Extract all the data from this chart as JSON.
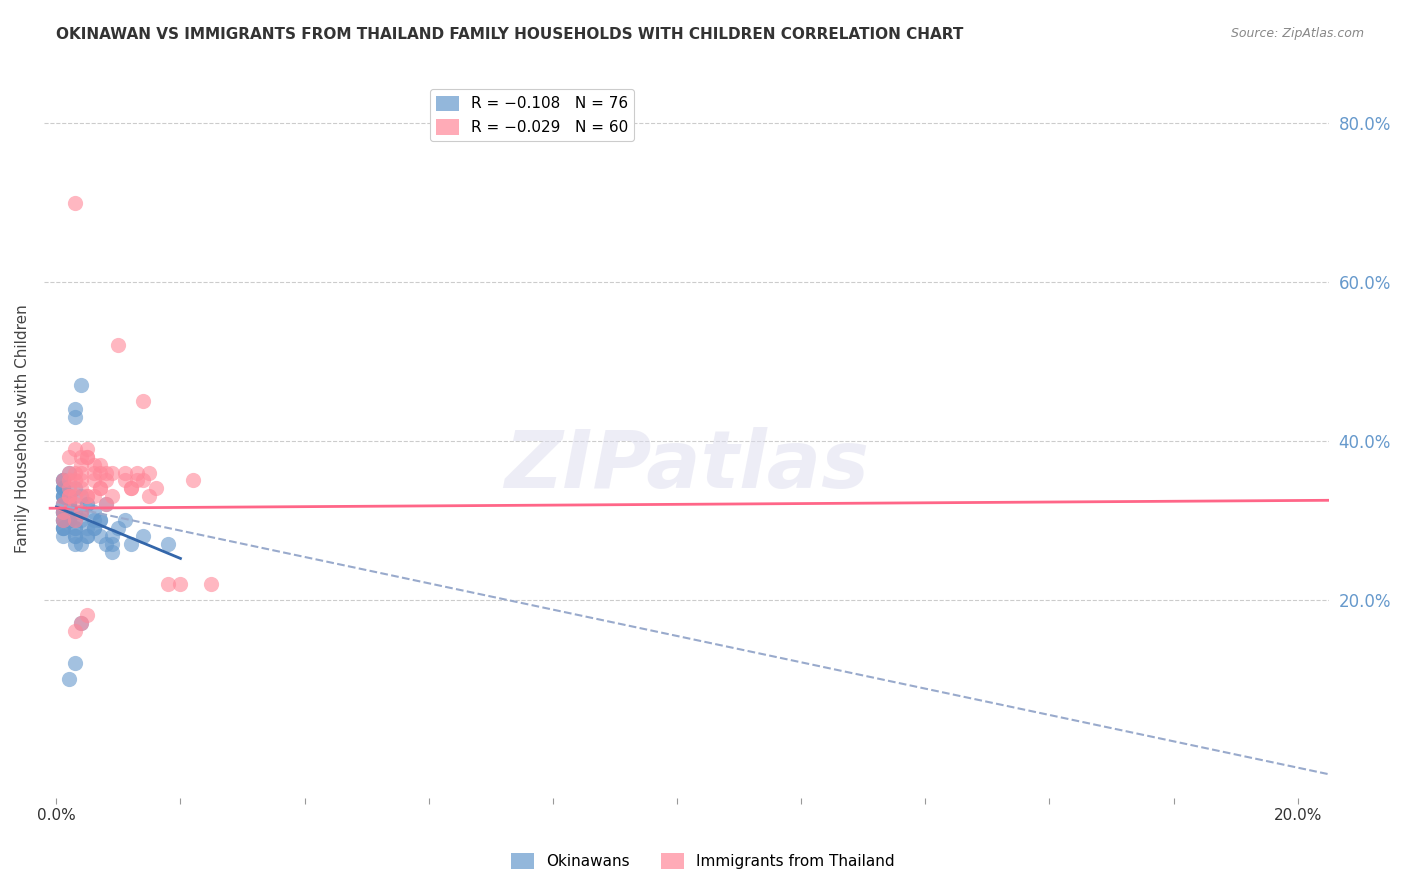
{
  "title": "OKINAWAN VS IMMIGRANTS FROM THAILAND FAMILY HOUSEHOLDS WITH CHILDREN CORRELATION CHART",
  "source": "Source: ZipAtlas.com",
  "ylabel": "Family Households with Children",
  "xlabel_bottom": "",
  "right_ytick_labels": [
    "80.0%",
    "60.0%",
    "40.0%",
    "20.0%"
  ],
  "right_ytick_values": [
    0.8,
    0.6,
    0.4,
    0.2
  ],
  "xlim": [
    -0.002,
    0.205
  ],
  "ylim": [
    -0.05,
    0.88
  ],
  "xtick_labels": [
    "0.0%",
    "",
    "",
    "",
    "",
    "",
    "",
    "",
    "",
    "",
    "20.0%"
  ],
  "okinawan_color": "#6699CC",
  "thailand_color": "#FF8899",
  "trend_okinawan_color": "#3366AA",
  "trend_thailand_solid_color": "#FF6688",
  "trend_dashed_color": "#99AACC",
  "legend_R_okinawan": "R = −0.108",
  "legend_N_okinawan": "N = 76",
  "legend_R_thailand": "R = −0.029",
  "legend_N_thailand": "N = 60",
  "legend_label_okinawan": "Okinawans",
  "legend_label_thailand": "Immigrants from Thailand",
  "watermark": "ZIPatlas",
  "background_color": "#FFFFFF",
  "plot_bg_color": "#FFFFFF",
  "grid_color": "#CCCCCC",
  "title_color": "#333333",
  "right_axis_color": "#6699CC",
  "source_color": "#888888",
  "okinawan_x": [
    0.001,
    0.002,
    0.001,
    0.003,
    0.001,
    0.002,
    0.001,
    0.001,
    0.002,
    0.003,
    0.001,
    0.001,
    0.002,
    0.001,
    0.003,
    0.001,
    0.002,
    0.001,
    0.001,
    0.002,
    0.001,
    0.001,
    0.002,
    0.001,
    0.003,
    0.001,
    0.002,
    0.001,
    0.001,
    0.002,
    0.001,
    0.001,
    0.002,
    0.001,
    0.003,
    0.001,
    0.002,
    0.001,
    0.003,
    0.002,
    0.001,
    0.004,
    0.003,
    0.003,
    0.004,
    0.005,
    0.004,
    0.004,
    0.005,
    0.003,
    0.005,
    0.004,
    0.003,
    0.004,
    0.006,
    0.005,
    0.007,
    0.006,
    0.008,
    0.007,
    0.009,
    0.006,
    0.01,
    0.008,
    0.009,
    0.007,
    0.006,
    0.005,
    0.012,
    0.011,
    0.009,
    0.014,
    0.018,
    0.004,
    0.003,
    0.002
  ],
  "okinawan_y": [
    0.3,
    0.32,
    0.34,
    0.28,
    0.35,
    0.33,
    0.29,
    0.31,
    0.36,
    0.27,
    0.34,
    0.32,
    0.31,
    0.3,
    0.29,
    0.33,
    0.32,
    0.34,
    0.31,
    0.3,
    0.28,
    0.35,
    0.33,
    0.29,
    0.31,
    0.32,
    0.3,
    0.34,
    0.33,
    0.31,
    0.29,
    0.3,
    0.32,
    0.35,
    0.28,
    0.31,
    0.3,
    0.33,
    0.29,
    0.32,
    0.31,
    0.47,
    0.43,
    0.44,
    0.3,
    0.32,
    0.31,
    0.33,
    0.29,
    0.3,
    0.28,
    0.31,
    0.34,
    0.27,
    0.3,
    0.32,
    0.28,
    0.29,
    0.27,
    0.3,
    0.28,
    0.31,
    0.29,
    0.32,
    0.27,
    0.3,
    0.29,
    0.28,
    0.27,
    0.3,
    0.26,
    0.28,
    0.27,
    0.17,
    0.12,
    0.1
  ],
  "thailand_x": [
    0.001,
    0.002,
    0.001,
    0.003,
    0.002,
    0.001,
    0.002,
    0.001,
    0.003,
    0.002,
    0.004,
    0.003,
    0.002,
    0.004,
    0.003,
    0.005,
    0.003,
    0.004,
    0.002,
    0.005,
    0.004,
    0.003,
    0.005,
    0.004,
    0.006,
    0.005,
    0.006,
    0.007,
    0.005,
    0.007,
    0.006,
    0.008,
    0.007,
    0.009,
    0.008,
    0.01,
    0.009,
    0.011,
    0.012,
    0.011,
    0.013,
    0.012,
    0.013,
    0.014,
    0.015,
    0.014,
    0.016,
    0.015,
    0.018,
    0.02,
    0.025,
    0.022,
    0.003,
    0.004,
    0.006,
    0.007,
    0.008,
    0.005,
    0.004,
    0.003
  ],
  "thailand_y": [
    0.31,
    0.33,
    0.3,
    0.7,
    0.38,
    0.35,
    0.33,
    0.32,
    0.3,
    0.36,
    0.35,
    0.33,
    0.34,
    0.38,
    0.39,
    0.33,
    0.36,
    0.34,
    0.35,
    0.38,
    0.36,
    0.35,
    0.39,
    0.37,
    0.36,
    0.38,
    0.35,
    0.37,
    0.33,
    0.36,
    0.37,
    0.36,
    0.34,
    0.33,
    0.35,
    0.52,
    0.36,
    0.35,
    0.34,
    0.36,
    0.35,
    0.34,
    0.36,
    0.45,
    0.36,
    0.35,
    0.34,
    0.33,
    0.22,
    0.22,
    0.22,
    0.35,
    0.32,
    0.31,
    0.33,
    0.34,
    0.32,
    0.18,
    0.17,
    0.16
  ]
}
